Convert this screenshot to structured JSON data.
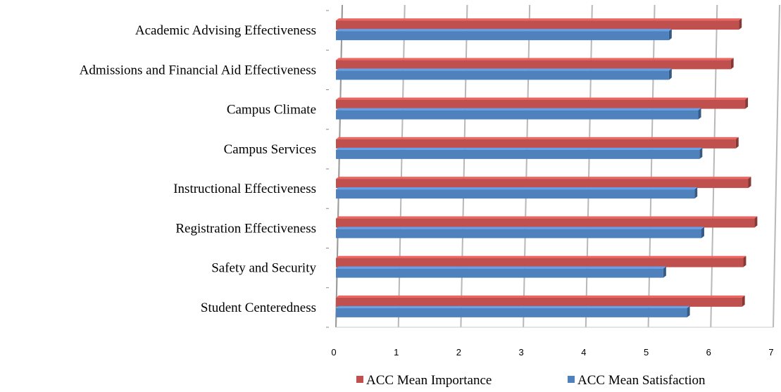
{
  "chart_data": {
    "type": "bar",
    "orientation": "horizontal",
    "style": "3d-clustered",
    "categories": [
      "Academic Advising Effectiveness",
      "Admissions and Financial Aid Effectiveness",
      "Campus Climate",
      "Campus Services",
      "Instructional Effectiveness",
      "Registration Effectiveness",
      "Safety and Security",
      "Student Centeredness"
    ],
    "series": [
      {
        "name": "ACC Mean Importance",
        "color": "#C0504D",
        "values": [
          6.45,
          6.32,
          6.55,
          6.4,
          6.6,
          6.7,
          6.52,
          6.5
        ]
      },
      {
        "name": "ACC Mean Satisfaction",
        "color": "#4F81BD",
        "values": [
          5.33,
          5.33,
          5.8,
          5.82,
          5.74,
          5.85,
          5.24,
          5.62
        ]
      }
    ],
    "xlim": [
      0,
      7
    ],
    "xticks": [
      "0",
      "1",
      "2",
      "3",
      "4",
      "5",
      "6",
      "7"
    ],
    "grid": true,
    "legend": "bottom",
    "title": "",
    "xlabel": "",
    "ylabel": ""
  }
}
